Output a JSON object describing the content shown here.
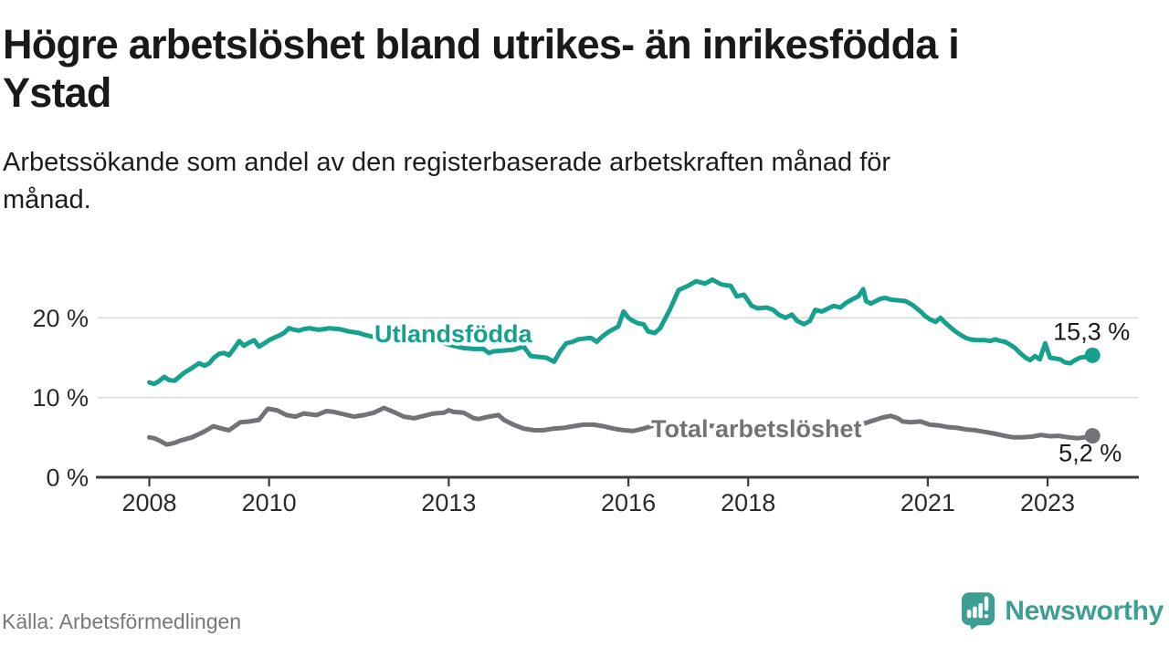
{
  "colors": {
    "brand": "#3D9E94",
    "series_teal": "#16A08D",
    "series_gray": "#737377",
    "grid": "#DBDBDB",
    "axis": "#3B3B3B",
    "tick_text": "#2B2B2B",
    "value_text": "#191919"
  },
  "header": {
    "title_lines": [
      "Högre arbetslöshet bland utrikes- än inrikesfödda i",
      "Ystad"
    ],
    "subtitle_lines": [
      "Arbetssökande som andel av den registerbaserade arbetskraften månad för",
      "månad."
    ]
  },
  "footer": {
    "source": "Källa: Arbetsförmedlingen",
    "brand": "Newsworthy"
  },
  "chart_data": {
    "type": "line",
    "title": "Högre arbetslöshet bland utrikes- än inrikesfödda i Ystad",
    "subtitle": "Arbetssökande som andel av den registerbaserade arbetskraften månad för månad.",
    "source": "Källa: Arbetsförmedlingen",
    "unit": "%",
    "grid": true,
    "legend_position": "inline-labels",
    "x_axis": {
      "kind": "time-years",
      "range": [
        2007.14,
        2024.5
      ],
      "ticks": [
        {
          "label": "2008",
          "year": 2008
        },
        {
          "label": "2010",
          "year": 2010
        },
        {
          "label": "2013",
          "year": 2013
        },
        {
          "label": "2016",
          "year": 2016
        },
        {
          "label": "2018",
          "year": 2018
        },
        {
          "label": "2021",
          "year": 2021
        },
        {
          "label": "2023",
          "year": 2023
        }
      ]
    },
    "y_axis": {
      "range": [
        0,
        26
      ],
      "ticks": [
        {
          "label": "0 %",
          "value": 0
        },
        {
          "label": "10 %",
          "value": 10
        },
        {
          "label": "20 %",
          "value": 20
        }
      ]
    },
    "series": [
      {
        "key": "utlandsfodda",
        "name": "Utlandsfödda",
        "color": "#16A08D",
        "end_value": 15.3,
        "end_label": "15,3 %",
        "label_anchor": {
          "year": 2011.76,
          "value": 16.95
        },
        "points": [
          [
            2008.0,
            11.9
          ],
          [
            2008.08,
            11.7
          ],
          [
            2008.17,
            12.1
          ],
          [
            2008.25,
            12.6
          ],
          [
            2008.33,
            12.2
          ],
          [
            2008.42,
            12.1
          ],
          [
            2008.5,
            12.6
          ],
          [
            2008.58,
            13.1
          ],
          [
            2008.67,
            13.5
          ],
          [
            2008.75,
            13.9
          ],
          [
            2008.83,
            14.3
          ],
          [
            2008.92,
            14.0
          ],
          [
            2009.0,
            14.3
          ],
          [
            2009.08,
            15.0
          ],
          [
            2009.17,
            15.5
          ],
          [
            2009.25,
            15.6
          ],
          [
            2009.33,
            15.3
          ],
          [
            2009.42,
            16.2
          ],
          [
            2009.5,
            17.1
          ],
          [
            2009.58,
            16.5
          ],
          [
            2009.67,
            16.9
          ],
          [
            2009.75,
            17.2
          ],
          [
            2009.83,
            16.4
          ],
          [
            2009.92,
            16.8
          ],
          [
            2010.0,
            17.2
          ],
          [
            2010.08,
            17.5
          ],
          [
            2010.17,
            17.8
          ],
          [
            2010.25,
            18.1
          ],
          [
            2010.33,
            18.7
          ],
          [
            2010.42,
            18.5
          ],
          [
            2010.5,
            18.4
          ],
          [
            2010.58,
            18.6
          ],
          [
            2010.67,
            18.7
          ],
          [
            2010.75,
            18.6
          ],
          [
            2010.83,
            18.5
          ],
          [
            2010.92,
            18.6
          ],
          [
            2011.0,
            18.7
          ],
          [
            2011.17,
            18.6
          ],
          [
            2011.33,
            18.3
          ],
          [
            2011.5,
            18.1
          ],
          [
            2011.58,
            17.9
          ],
          [
            2011.75,
            17.6
          ],
          [
            2011.92,
            17.4
          ],
          [
            2012.08,
            17.7
          ],
          [
            2012.25,
            18.1
          ],
          [
            2012.42,
            18.3
          ],
          [
            2012.58,
            17.8
          ],
          [
            2012.75,
            17.2
          ],
          [
            2012.92,
            16.8
          ],
          [
            2013.08,
            16.5
          ],
          [
            2013.25,
            16.2
          ],
          [
            2013.42,
            16.1
          ],
          [
            2013.58,
            16.1
          ],
          [
            2013.67,
            15.6
          ],
          [
            2013.75,
            15.8
          ],
          [
            2013.92,
            15.9
          ],
          [
            2014.08,
            16.0
          ],
          [
            2014.25,
            16.4
          ],
          [
            2014.37,
            15.2
          ],
          [
            2014.5,
            15.1
          ],
          [
            2014.63,
            15.0
          ],
          [
            2014.76,
            14.5
          ],
          [
            2014.86,
            15.8
          ],
          [
            2014.96,
            16.8
          ],
          [
            2015.07,
            17.0
          ],
          [
            2015.16,
            17.3
          ],
          [
            2015.37,
            17.5
          ],
          [
            2015.47,
            17.0
          ],
          [
            2015.57,
            17.7
          ],
          [
            2015.68,
            18.3
          ],
          [
            2015.83,
            18.9
          ],
          [
            2015.92,
            20.8
          ],
          [
            2016.0,
            20.0
          ],
          [
            2016.08,
            19.6
          ],
          [
            2016.17,
            19.3
          ],
          [
            2016.25,
            19.2
          ],
          [
            2016.33,
            18.3
          ],
          [
            2016.44,
            18.1
          ],
          [
            2016.53,
            18.7
          ],
          [
            2016.69,
            21.0
          ],
          [
            2016.84,
            23.5
          ],
          [
            2016.99,
            24.0
          ],
          [
            2017.13,
            24.6
          ],
          [
            2017.28,
            24.3
          ],
          [
            2017.4,
            24.8
          ],
          [
            2017.55,
            24.2
          ],
          [
            2017.71,
            24.0
          ],
          [
            2017.81,
            22.7
          ],
          [
            2017.93,
            22.9
          ],
          [
            2018.06,
            21.5
          ],
          [
            2018.16,
            21.2
          ],
          [
            2018.31,
            21.3
          ],
          [
            2018.42,
            21.0
          ],
          [
            2018.51,
            20.4
          ],
          [
            2018.62,
            20.0
          ],
          [
            2018.73,
            20.4
          ],
          [
            2018.82,
            19.6
          ],
          [
            2018.93,
            19.2
          ],
          [
            2019.03,
            19.6
          ],
          [
            2019.12,
            21.0
          ],
          [
            2019.23,
            20.8
          ],
          [
            2019.34,
            21.2
          ],
          [
            2019.43,
            21.5
          ],
          [
            2019.54,
            21.3
          ],
          [
            2019.64,
            21.9
          ],
          [
            2019.73,
            22.3
          ],
          [
            2019.84,
            22.7
          ],
          [
            2019.92,
            23.6
          ],
          [
            2019.97,
            22.1
          ],
          [
            2020.05,
            21.8
          ],
          [
            2020.13,
            22.1
          ],
          [
            2020.21,
            22.4
          ],
          [
            2020.29,
            22.5
          ],
          [
            2020.38,
            22.3
          ],
          [
            2020.5,
            22.2
          ],
          [
            2020.63,
            22.1
          ],
          [
            2020.75,
            21.6
          ],
          [
            2020.88,
            20.8
          ],
          [
            2020.96,
            20.2
          ],
          [
            2021.04,
            19.8
          ],
          [
            2021.13,
            19.5
          ],
          [
            2021.21,
            20.0
          ],
          [
            2021.29,
            19.4
          ],
          [
            2021.38,
            18.8
          ],
          [
            2021.46,
            18.3
          ],
          [
            2021.54,
            17.9
          ],
          [
            2021.63,
            17.5
          ],
          [
            2021.71,
            17.3
          ],
          [
            2021.83,
            17.2
          ],
          [
            2021.96,
            17.2
          ],
          [
            2022.04,
            17.1
          ],
          [
            2022.13,
            17.3
          ],
          [
            2022.21,
            17.1
          ],
          [
            2022.29,
            17.0
          ],
          [
            2022.38,
            16.6
          ],
          [
            2022.46,
            16.2
          ],
          [
            2022.54,
            15.6
          ],
          [
            2022.63,
            15.0
          ],
          [
            2022.71,
            14.7
          ],
          [
            2022.79,
            15.2
          ],
          [
            2022.87,
            14.8
          ],
          [
            2022.96,
            16.8
          ],
          [
            2023.04,
            15.0
          ],
          [
            2023.13,
            14.9
          ],
          [
            2023.21,
            14.8
          ],
          [
            2023.29,
            14.4
          ],
          [
            2023.38,
            14.3
          ],
          [
            2023.46,
            14.7
          ],
          [
            2023.54,
            15.0
          ],
          [
            2023.63,
            15.1
          ],
          [
            2023.75,
            15.3
          ]
        ]
      },
      {
        "key": "total-arbetsloshet",
        "name": "Total arbetslöshet",
        "color": "#737377",
        "end_value": 5.2,
        "end_label": "5,2 %",
        "label_anchor": {
          "year": 2016.38,
          "value": 5.05
        },
        "points": [
          [
            2008.0,
            5.0
          ],
          [
            2008.08,
            4.9
          ],
          [
            2008.17,
            4.6
          ],
          [
            2008.29,
            4.1
          ],
          [
            2008.42,
            4.3
          ],
          [
            2008.52,
            4.6
          ],
          [
            2008.71,
            5.0
          ],
          [
            2008.91,
            5.7
          ],
          [
            2009.07,
            6.4
          ],
          [
            2009.21,
            6.1
          ],
          [
            2009.33,
            5.9
          ],
          [
            2009.52,
            6.9
          ],
          [
            2009.67,
            7.0
          ],
          [
            2009.83,
            7.2
          ],
          [
            2009.98,
            8.6
          ],
          [
            2010.13,
            8.4
          ],
          [
            2010.29,
            7.8
          ],
          [
            2010.44,
            7.6
          ],
          [
            2010.58,
            8.0
          ],
          [
            2010.79,
            7.8
          ],
          [
            2010.96,
            8.3
          ],
          [
            2011.08,
            8.2
          ],
          [
            2011.25,
            7.9
          ],
          [
            2011.42,
            7.6
          ],
          [
            2011.58,
            7.8
          ],
          [
            2011.75,
            8.1
          ],
          [
            2011.92,
            8.7
          ],
          [
            2012.08,
            8.2
          ],
          [
            2012.25,
            7.6
          ],
          [
            2012.42,
            7.4
          ],
          [
            2012.58,
            7.7
          ],
          [
            2012.75,
            8.0
          ],
          [
            2012.92,
            8.1
          ],
          [
            2013.0,
            8.4
          ],
          [
            2013.08,
            8.2
          ],
          [
            2013.25,
            8.1
          ],
          [
            2013.42,
            7.4
          ],
          [
            2013.5,
            7.3
          ],
          [
            2013.67,
            7.6
          ],
          [
            2013.83,
            7.8
          ],
          [
            2013.92,
            7.2
          ],
          [
            2014.08,
            6.6
          ],
          [
            2014.25,
            6.1
          ],
          [
            2014.42,
            5.9
          ],
          [
            2014.58,
            5.9
          ],
          [
            2014.75,
            6.1
          ],
          [
            2014.92,
            6.2
          ],
          [
            2015.08,
            6.4
          ],
          [
            2015.25,
            6.6
          ],
          [
            2015.42,
            6.6
          ],
          [
            2015.58,
            6.4
          ],
          [
            2015.75,
            6.1
          ],
          [
            2015.92,
            5.9
          ],
          [
            2016.08,
            5.8
          ],
          [
            2016.25,
            6.1
          ],
          [
            2016.42,
            6.5
          ],
          [
            2016.58,
            6.6
          ],
          [
            2016.75,
            6.4
          ],
          [
            2017.0,
            6.6
          ],
          [
            2017.25,
            6.5
          ],
          [
            2017.5,
            6.4
          ],
          [
            2017.75,
            6.3
          ],
          [
            2018.0,
            6.3
          ],
          [
            2018.25,
            6.2
          ],
          [
            2018.5,
            6.2
          ],
          [
            2018.75,
            6.3
          ],
          [
            2019.0,
            6.3
          ],
          [
            2019.25,
            6.4
          ],
          [
            2019.5,
            6.4
          ],
          [
            2019.75,
            6.5
          ],
          [
            2019.92,
            6.7
          ],
          [
            2020.08,
            7.1
          ],
          [
            2020.25,
            7.5
          ],
          [
            2020.38,
            7.7
          ],
          [
            2020.5,
            7.4
          ],
          [
            2020.58,
            7.0
          ],
          [
            2020.71,
            6.9
          ],
          [
            2020.88,
            7.0
          ],
          [
            2021.03,
            6.6
          ],
          [
            2021.18,
            6.5
          ],
          [
            2021.33,
            6.3
          ],
          [
            2021.49,
            6.2
          ],
          [
            2021.64,
            6.0
          ],
          [
            2021.79,
            5.9
          ],
          [
            2021.94,
            5.7
          ],
          [
            2022.1,
            5.5
          ],
          [
            2022.28,
            5.2
          ],
          [
            2022.43,
            5.0
          ],
          [
            2022.58,
            5.0
          ],
          [
            2022.74,
            5.1
          ],
          [
            2022.89,
            5.3
          ],
          [
            2023.04,
            5.15
          ],
          [
            2023.19,
            5.2
          ],
          [
            2023.35,
            5.0
          ],
          [
            2023.5,
            4.9
          ],
          [
            2023.62,
            5.0
          ],
          [
            2023.69,
            5.1
          ],
          [
            2023.75,
            5.2
          ]
        ]
      }
    ]
  }
}
